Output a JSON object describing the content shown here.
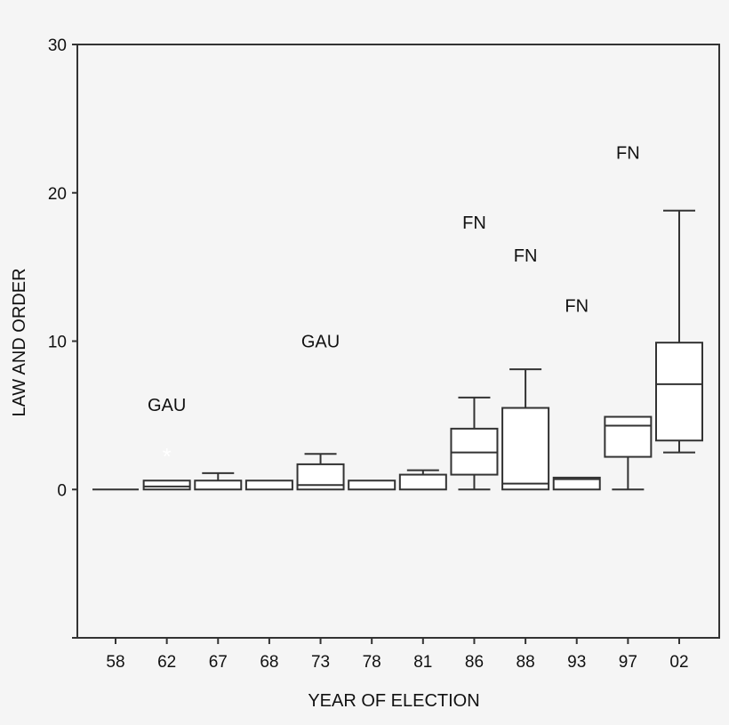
{
  "chart_data": {
    "type": "boxplot",
    "title": "",
    "xlabel": "YEAR OF ELECTION",
    "ylabel": "LAW AND ORDER",
    "ylim": [
      -10,
      30
    ],
    "yticks": [
      0,
      10,
      20,
      30
    ],
    "grid": false,
    "legend": null,
    "categories": [
      "58",
      "62",
      "67",
      "68",
      "73",
      "78",
      "81",
      "86",
      "88",
      "93",
      "97",
      "02"
    ],
    "boxes": [
      {
        "category": "58",
        "whisker_low": 0,
        "q1": 0,
        "median": 0,
        "q3": 0,
        "whisker_high": 0
      },
      {
        "category": "62",
        "whisker_low": 0,
        "q1": 0,
        "median": 0.2,
        "q3": 0.6,
        "whisker_high": 0.6
      },
      {
        "category": "67",
        "whisker_low": 0,
        "q1": 0,
        "median": 0,
        "q3": 0.6,
        "whisker_high": 1.1
      },
      {
        "category": "68",
        "whisker_low": 0,
        "q1": 0,
        "median": 0,
        "q3": 0.6,
        "whisker_high": 0.6
      },
      {
        "category": "73",
        "whisker_low": 0,
        "q1": 0,
        "median": 0.3,
        "q3": 1.7,
        "whisker_high": 2.4
      },
      {
        "category": "78",
        "whisker_low": 0,
        "q1": 0,
        "median": 0,
        "q3": 0.6,
        "whisker_high": 0.6
      },
      {
        "category": "81",
        "whisker_low": 0,
        "q1": 0,
        "median": 0,
        "q3": 1.0,
        "whisker_high": 1.3
      },
      {
        "category": "86",
        "whisker_low": 0,
        "q1": 1.0,
        "median": 2.5,
        "q3": 4.1,
        "whisker_high": 6.2
      },
      {
        "category": "88",
        "whisker_low": 0,
        "q1": 0,
        "median": 0.4,
        "q3": 5.5,
        "whisker_high": 8.1
      },
      {
        "category": "93",
        "whisker_low": 0,
        "q1": 0,
        "median": 0.7,
        "q3": 0.8,
        "whisker_high": 0.8
      },
      {
        "category": "97",
        "whisker_low": 0,
        "q1": 2.2,
        "median": 4.3,
        "q3": 4.9,
        "whisker_high": 4.9
      },
      {
        "category": "02",
        "whisker_low": 2.5,
        "q1": 3.3,
        "median": 7.1,
        "q3": 9.9,
        "whisker_high": 18.8
      }
    ],
    "outliers": [
      {
        "category": "62",
        "value": 2.3,
        "marker": "*"
      }
    ],
    "annotations": [
      {
        "category": "62",
        "text": "GAU",
        "y": 5.7
      },
      {
        "category": "73",
        "text": "GAU",
        "y": 10.0
      },
      {
        "category": "86",
        "text": "FN",
        "y": 18.0
      },
      {
        "category": "88",
        "text": "FN",
        "y": 15.8
      },
      {
        "category": "93",
        "text": "FN",
        "y": 12.4
      },
      {
        "category": "97",
        "text": "FN",
        "y": 22.7
      }
    ]
  },
  "axes": {
    "y_tick_labels": [
      "0",
      "10",
      "20",
      "30"
    ],
    "x_title": "YEAR OF ELECTION",
    "y_title": "LAW AND ORDER"
  }
}
